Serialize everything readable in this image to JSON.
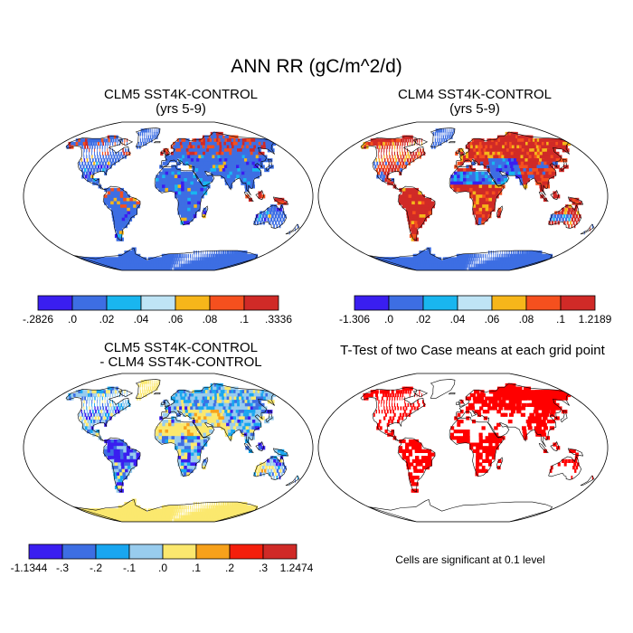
{
  "title": "ANN RR (gC/m^2/d)",
  "panels": [
    {
      "id": "p1",
      "title_line1": "CLM5 SST4K-CONTROL",
      "title_line2": "(yrs 5-9)",
      "mode": "clm5",
      "colorbar": {
        "colors": [
          "#3a1ef0",
          "#3d6ee3",
          "#19b6ef",
          "#bfe4f5",
          "#f6b61a",
          "#f5501e",
          "#d02a27"
        ],
        "labels": [
          "-.2826",
          ".0",
          ".02",
          ".04",
          ".06",
          ".08",
          ".1",
          ".3336"
        ]
      }
    },
    {
      "id": "p2",
      "title_line1": "CLM4 SST4K-CONTROL",
      "title_line2": "(yrs 5-9)",
      "mode": "clm4",
      "colorbar": {
        "colors": [
          "#3a1ef0",
          "#3d6ee3",
          "#19b6ef",
          "#bfe4f5",
          "#f6b61a",
          "#f5501e",
          "#d02a27"
        ],
        "labels": [
          "-1.306",
          ".0",
          ".02",
          ".04",
          ".06",
          ".08",
          ".1",
          "1.2189"
        ]
      }
    },
    {
      "id": "p3",
      "title_line1": "CLM5 SST4K-CONTROL",
      "title_line2": "- CLM4 SST4K-CONTROL",
      "mode": "diff",
      "colorbar": {
        "colors": [
          "#3a1ef0",
          "#3d6ee3",
          "#19a6f0",
          "#98ccee",
          "#fbe86e",
          "#f7a11b",
          "#f41f0c",
          "#d02a27"
        ],
        "labels": [
          "-1.1344",
          "-.3",
          "-.2",
          "-.1",
          ".0",
          ".1",
          ".2",
          ".3",
          "1.2474"
        ]
      }
    },
    {
      "id": "p4",
      "title_line1": "T-Test of two Case means at each grid point",
      "title_line2": "",
      "mode": "ttest"
    }
  ],
  "note": "Cells are significant at 0.1 level"
}
